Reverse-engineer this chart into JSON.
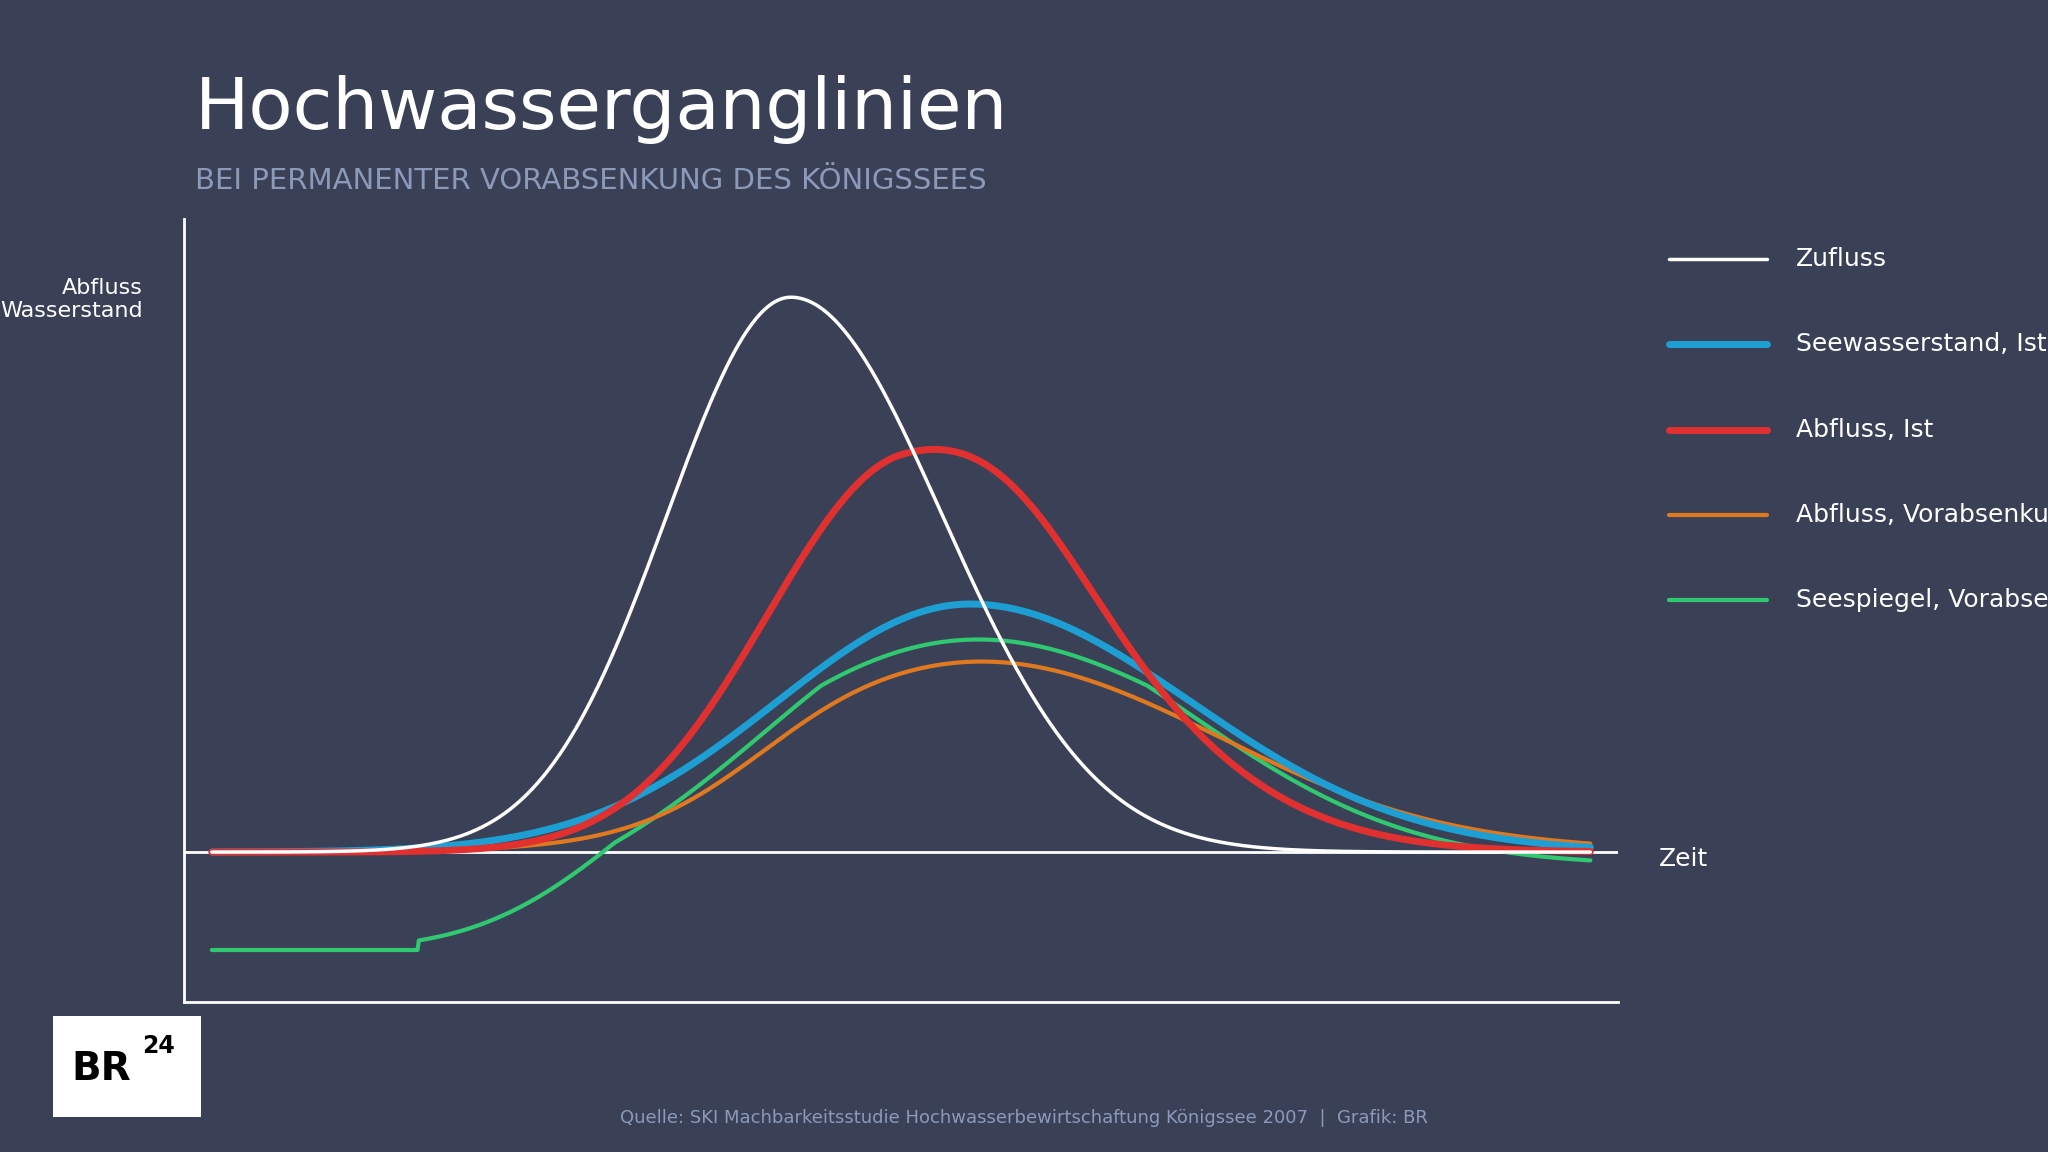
{
  "title": "Hochwasserganglinien",
  "subtitle": "BEI PERMANENTER VORABSENKUNG DES ÖNIGSSEES",
  "subtitle2": "BEI PERMANENTER VORABSENKUNG DES KÖNIGSSEES",
  "ylabel": "Abfluss\nWasserstand",
  "xlabel": "Zeit",
  "bg_color": "#3a4157",
  "text_color": "#ffffff",
  "subtitle_color": "#8a9ab8",
  "source_text": "Quelle: SKI Machbarkeitsstudie Hochwasserbewirtschaftung Königssee 2007  |  Grafik: BR",
  "legend": [
    {
      "label": "Zufluss",
      "color": "#ffffff",
      "lw": 2.5
    },
    {
      "label": "Seewasserstand, Ist",
      "color": "#1e9fd4",
      "lw": 5
    },
    {
      "label": "Abfluss, Ist",
      "color": "#e03030",
      "lw": 5
    },
    {
      "label": "Abfluss, Vorabsenkung",
      "color": "#e07820",
      "lw": 3
    },
    {
      "label": "Seespiegel, Vorabsenkung",
      "color": "#30c870",
      "lw": 3
    }
  ]
}
